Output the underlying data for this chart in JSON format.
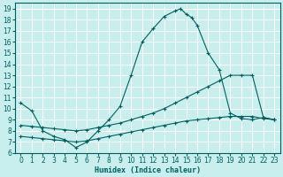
{
  "xlabel": "Humidex (Indice chaleur)",
  "bg_color": "#c8eeee",
  "grid_color": "#ffffff",
  "line_color": "#006060",
  "xlim": [
    -0.5,
    23.5
  ],
  "ylim": [
    6,
    19.5
  ],
  "xticks": [
    0,
    1,
    2,
    3,
    4,
    5,
    6,
    7,
    8,
    9,
    10,
    11,
    12,
    13,
    14,
    15,
    16,
    17,
    18,
    19,
    20,
    21,
    22,
    23
  ],
  "yticks": [
    6,
    7,
    8,
    9,
    10,
    11,
    12,
    13,
    14,
    15,
    16,
    17,
    18,
    19
  ],
  "curve1_x": [
    0,
    1,
    2,
    3,
    4,
    5,
    6,
    7,
    8,
    9,
    10,
    11,
    12,
    13,
    14,
    14.5,
    15,
    15.5,
    16,
    17,
    18,
    19,
    20,
    21,
    22,
    23
  ],
  "curve1_y": [
    10.5,
    9.8,
    8.0,
    7.5,
    7.2,
    6.5,
    7.0,
    8.0,
    9.0,
    10.2,
    13.0,
    16.0,
    17.2,
    18.3,
    18.8,
    19.0,
    18.5,
    18.2,
    17.5,
    15.0,
    13.5,
    9.6,
    9.1,
    9.0,
    9.2,
    9.0
  ],
  "curve2_x": [
    0,
    1,
    2,
    3,
    4,
    5,
    6,
    7,
    8,
    9,
    10,
    11,
    12,
    13,
    14,
    15,
    16,
    17,
    18,
    19,
    20,
    21,
    22,
    23
  ],
  "curve2_y": [
    8.5,
    8.4,
    8.3,
    8.2,
    8.1,
    8.0,
    8.1,
    8.3,
    8.5,
    8.7,
    9.0,
    9.3,
    9.6,
    10.0,
    10.5,
    11.0,
    11.5,
    12.0,
    12.5,
    13.0,
    13.0,
    13.0,
    9.2,
    9.0
  ],
  "curve3_x": [
    0,
    1,
    2,
    3,
    4,
    5,
    6,
    7,
    8,
    9,
    10,
    11,
    12,
    13,
    14,
    15,
    16,
    17,
    18,
    19,
    20,
    21,
    22,
    23
  ],
  "curve3_y": [
    7.5,
    7.4,
    7.3,
    7.2,
    7.1,
    7.0,
    7.1,
    7.3,
    7.5,
    7.7,
    7.9,
    8.1,
    8.3,
    8.5,
    8.7,
    8.9,
    9.0,
    9.1,
    9.2,
    9.3,
    9.3,
    9.3,
    9.1,
    9.0
  ]
}
